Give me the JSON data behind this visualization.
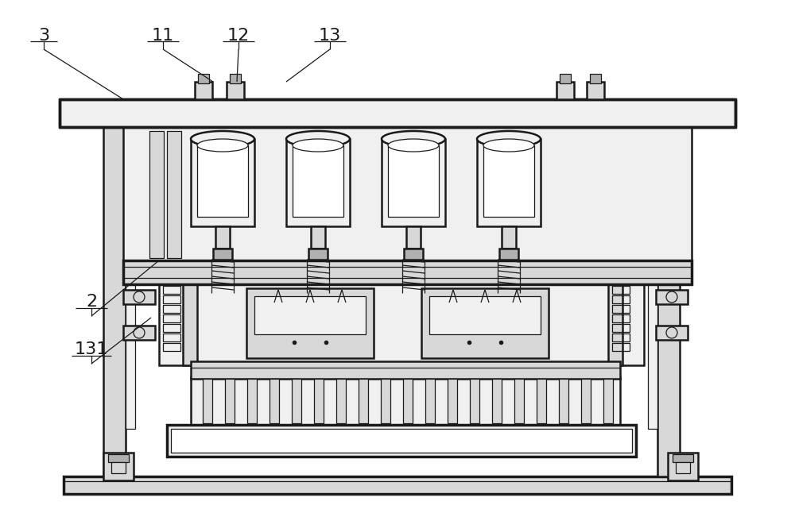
{
  "bg_color": "#ffffff",
  "lc": "#1a1a1a",
  "fig_width": 10.0,
  "fig_height": 6.41,
  "lw_main": 1.8,
  "lw_thin": 0.9,
  "lw_thick": 2.5,
  "fc_light": "#f0f0f0",
  "fc_mid": "#d8d8d8",
  "fc_dark": "#b0b0b0",
  "fc_white": "#ffffff",
  "label_fs": 16
}
